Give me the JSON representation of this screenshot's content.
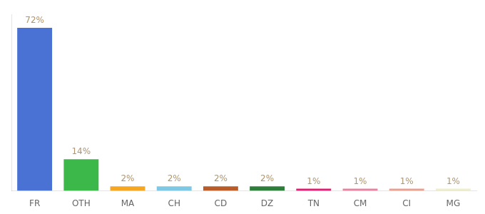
{
  "chart_data": {
    "type": "bar",
    "categories": [
      "FR",
      "OTH",
      "MA",
      "CH",
      "CD",
      "DZ",
      "TN",
      "CM",
      "CI",
      "MG"
    ],
    "values": [
      72,
      14,
      2,
      2,
      2,
      2,
      1,
      1,
      1,
      1
    ],
    "value_labels": [
      "72%",
      "14%",
      "2%",
      "2%",
      "2%",
      "2%",
      "1%",
      "1%",
      "1%",
      "1%"
    ],
    "colors": [
      "#4a72d4",
      "#3cb84a",
      "#f5a623",
      "#7ec8e3",
      "#b85c2a",
      "#2e7d3a",
      "#e8196e",
      "#e882a0",
      "#e8a090",
      "#eeeecc"
    ],
    "ylim": [
      0,
      78
    ],
    "data_labels": true,
    "tick_labels": "x",
    "grid": false
  }
}
